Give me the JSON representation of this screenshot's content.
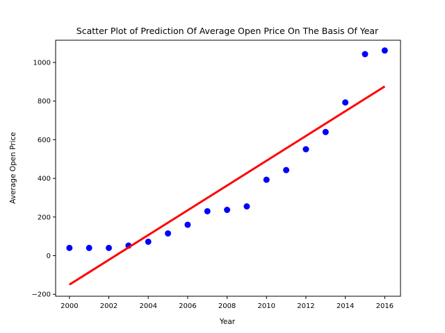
{
  "chart_data": {
    "type": "scatter",
    "title": "Scatter Plot of Prediction Of Average Open Price On The Basis Of Year",
    "xlabel": "Year",
    "ylabel": "Average Open Price",
    "xlim": [
      1999.3,
      2016.8
    ],
    "ylim": [
      -210,
      1115
    ],
    "x_ticks": [
      2000,
      2002,
      2004,
      2006,
      2008,
      2010,
      2012,
      2014,
      2016
    ],
    "y_ticks": [
      -200,
      0,
      200,
      400,
      600,
      800,
      1000
    ],
    "grid": false,
    "legend": "none",
    "series": [
      {
        "kind": "scatter",
        "color": "#0000ff",
        "x": [
          2000,
          2001,
          2002,
          2003,
          2004,
          2005,
          2006,
          2007,
          2008,
          2009,
          2010,
          2011,
          2012,
          2013,
          2014,
          2015,
          2016
        ],
        "y": [
          40,
          40,
          40,
          52,
          72,
          115,
          160,
          230,
          237,
          255,
          393,
          443,
          551,
          640,
          793,
          1043,
          1062
        ]
      },
      {
        "kind": "line",
        "color": "#ff0000",
        "x": [
          2000,
          2016
        ],
        "y": [
          -150,
          876
        ]
      }
    ]
  }
}
